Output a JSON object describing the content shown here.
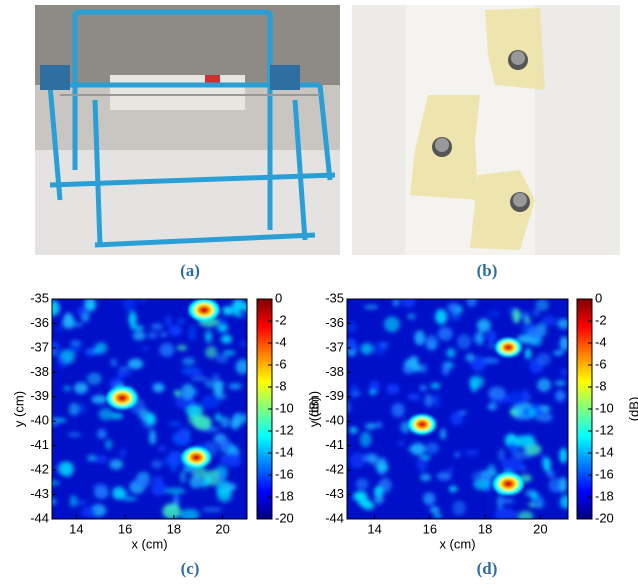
{
  "photos": [
    {
      "caption": "(a)"
    },
    {
      "caption": "(b)"
    }
  ],
  "heatmaps": [
    {
      "caption": "(c)",
      "x_label": "x (cm)",
      "y_label": "y (cm)",
      "xlim": [
        13,
        21
      ],
      "xticks": [
        14,
        16,
        18,
        20
      ],
      "ylim": [
        -44,
        -35
      ],
      "yticks": [
        -35,
        -36,
        -37,
        -38,
        -39,
        -40,
        -41,
        -42,
        -43,
        -44
      ],
      "colorbar": {
        "label": "(dB)",
        "lim": [
          -20,
          0
        ],
        "ticks": [
          0,
          -2,
          -4,
          -6,
          -8,
          -10,
          -12,
          -14,
          -16,
          -18,
          -20
        ]
      }
    },
    {
      "caption": "(d)",
      "x_label": "x (cm)",
      "y_label": "y (cm)",
      "xlim": [
        13,
        21
      ],
      "xticks": [
        14,
        16,
        18,
        20
      ],
      "ylim": [
        -44,
        -35
      ],
      "yticks": [
        -35,
        -36,
        -37,
        -38,
        -39,
        -40,
        -41,
        -42,
        -43,
        -44
      ],
      "colorbar": {
        "label": "(dB)",
        "lim": [
          -20,
          0
        ],
        "ticks": [
          0,
          -2,
          -4,
          -6,
          -8,
          -10,
          -12,
          -14,
          -16,
          -18,
          -20
        ]
      }
    }
  ]
}
